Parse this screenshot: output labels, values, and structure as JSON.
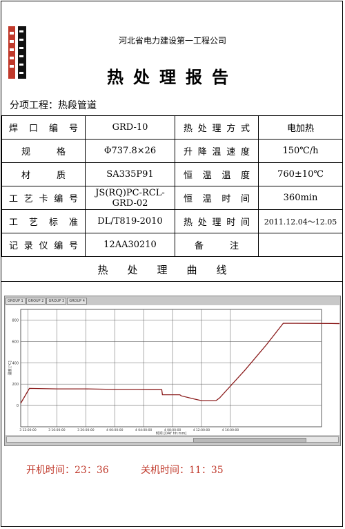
{
  "header": {
    "company": "河北省电力建设第一工程公司",
    "title": "热处理报告",
    "subproject_label": "分项工程：",
    "subproject_value": "热段管道"
  },
  "info_rows": [
    {
      "l1": "焊口编号",
      "v1": "GRD-10",
      "l2": "热处理方式",
      "v2": "电加热"
    },
    {
      "l1": "规格",
      "v1": "Φ737.8×26",
      "l2": "升降温速度",
      "v2": "150℃/h"
    },
    {
      "l1": "材质",
      "v1": "SA335P91",
      "l2": "恒温温度",
      "v2": "760±10℃"
    },
    {
      "l1": "工艺卡编号",
      "v1": "JS(RQ)PC-RCL-GRD-02",
      "l2": "恒温时间",
      "v2": "360min"
    },
    {
      "l1": "工艺标准",
      "v1": "DL/T819-2010",
      "l2": "热处理时间",
      "v2": "2011.12.04～12.05"
    },
    {
      "l1": "记录仪编号",
      "v1": "12AA30210",
      "l2": "备注",
      "v2": ""
    }
  ],
  "curve_section_title": "热处理曲线",
  "chart_tabs": [
    "GROUP 1",
    "GROUP 2",
    "GROUP 3",
    "GROUP 4"
  ],
  "chart_data": {
    "type": "line",
    "xlabel": "时间 [DAY hh:mm]",
    "ylabel": "温度 [℃]",
    "ylim": [
      -200,
      900
    ],
    "y_ticks": [
      0,
      200,
      400,
      600,
      800
    ],
    "x_ticks": [
      "3 12:00:00",
      "3 16:00:00",
      "3 20:00:00",
      "4 00:00:00",
      "4 04:00:00",
      "4 08:00:00",
      "4 12:00:00",
      "4 16:00:00"
    ],
    "x_range_hours": [
      -1,
      40.6
    ],
    "series": [
      {
        "color": "#8b1c1c",
        "points": [
          [
            -1,
            20
          ],
          [
            0.2,
            160
          ],
          [
            4,
            155
          ],
          [
            8,
            155
          ],
          [
            12,
            150
          ],
          [
            15,
            150
          ],
          [
            17,
            148
          ],
          [
            18.5,
            148
          ],
          [
            18.6,
            100
          ],
          [
            21,
            100
          ],
          [
            21.2,
            90
          ],
          [
            23,
            60
          ],
          [
            24,
            45
          ],
          [
            26,
            45
          ],
          [
            26.5,
            70
          ],
          [
            30,
            330
          ],
          [
            33,
            570
          ],
          [
            35.3,
            770
          ],
          [
            37,
            770
          ],
          [
            42,
            768
          ],
          [
            45.5,
            765
          ],
          [
            46.5,
            740
          ],
          [
            48,
            620
          ],
          [
            50,
            460
          ],
          [
            52.5,
            380
          ],
          [
            55,
            310
          ],
          [
            56.5,
            280
          ]
        ]
      }
    ]
  },
  "footer": {
    "start_label": "开机时间：",
    "start_time": "23：36",
    "stop_label": "关机时间：",
    "stop_time": "11：35"
  }
}
